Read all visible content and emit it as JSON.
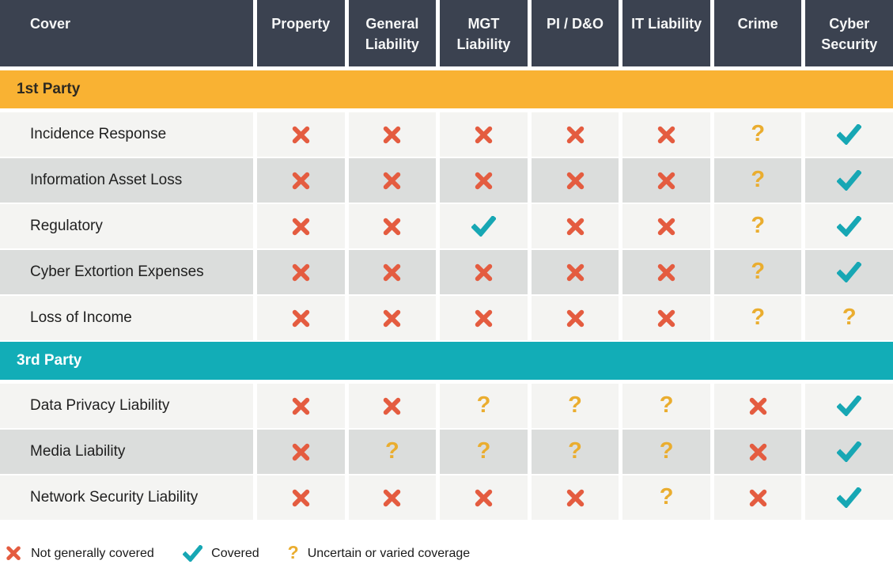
{
  "table": {
    "header": {
      "cover_label": "Cover",
      "columns": [
        "Property",
        "General Liability",
        "MGT Liability",
        "PI / D&O",
        "IT Liability",
        "Crime",
        "Cyber Security"
      ]
    },
    "sections": [
      {
        "name": "1st Party",
        "style": "amber",
        "rows": [
          {
            "label": "Incidence Response",
            "values": [
              "x",
              "x",
              "x",
              "x",
              "x",
              "q",
              "check"
            ]
          },
          {
            "label": "Information Asset Loss",
            "values": [
              "x",
              "x",
              "x",
              "x",
              "x",
              "q",
              "check"
            ]
          },
          {
            "label": "Regulatory",
            "values": [
              "x",
              "x",
              "check",
              "x",
              "x",
              "q",
              "check"
            ]
          },
          {
            "label": "Cyber Extortion Expenses",
            "values": [
              "x",
              "x",
              "x",
              "x",
              "x",
              "q",
              "check"
            ]
          },
          {
            "label": "Loss of Income",
            "values": [
              "x",
              "x",
              "x",
              "x",
              "x",
              "q",
              "q"
            ]
          }
        ]
      },
      {
        "name": "3rd Party",
        "style": "teal",
        "rows": [
          {
            "label": "Data Privacy Liability",
            "values": [
              "x",
              "x",
              "q",
              "q",
              "q",
              "x",
              "check"
            ]
          },
          {
            "label": "Media Liability",
            "values": [
              "x",
              "q",
              "q",
              "q",
              "q",
              "x",
              "check"
            ]
          },
          {
            "label": "Network Security Liability",
            "values": [
              "x",
              "x",
              "x",
              "x",
              "q",
              "x",
              "check"
            ]
          }
        ]
      }
    ]
  },
  "legend": [
    {
      "icon": "x",
      "label": "Not generally covered"
    },
    {
      "icon": "check",
      "label": "Covered"
    },
    {
      "icon": "q",
      "label": "Uncertain or varied coverage"
    }
  ],
  "icons": {
    "x": "cross-icon",
    "check": "check-icon",
    "q": "question-icon"
  },
  "colors": {
    "header_bg": "#3B4250",
    "header_text": "#F6F7F7",
    "first_party_banner": "#F9B233",
    "third_party_banner": "#12ADB7",
    "row_light": "#F4F4F2",
    "row_dark": "#DBDDDC",
    "not_covered": "#E45C40",
    "covered": "#17A7B4",
    "uncertain": "#EAAD2F"
  },
  "chart_data": {
    "type": "table",
    "title": "",
    "row_header": "Cover",
    "columns": [
      "Property",
      "General Liability",
      "MGT Liability",
      "PI / D&O",
      "IT Liability",
      "Crime",
      "Cyber Security"
    ],
    "sections": [
      {
        "name": "1st Party",
        "rows": [
          {
            "cover": "Incidence Response",
            "coverage": [
              "not-covered",
              "not-covered",
              "not-covered",
              "not-covered",
              "not-covered",
              "uncertain",
              "covered"
            ]
          },
          {
            "cover": "Information Asset Loss",
            "coverage": [
              "not-covered",
              "not-covered",
              "not-covered",
              "not-covered",
              "not-covered",
              "uncertain",
              "covered"
            ]
          },
          {
            "cover": "Regulatory",
            "coverage": [
              "not-covered",
              "not-covered",
              "covered",
              "not-covered",
              "not-covered",
              "uncertain",
              "covered"
            ]
          },
          {
            "cover": "Cyber Extortion Expenses",
            "coverage": [
              "not-covered",
              "not-covered",
              "not-covered",
              "not-covered",
              "not-covered",
              "uncertain",
              "covered"
            ]
          },
          {
            "cover": "Loss of Income",
            "coverage": [
              "not-covered",
              "not-covered",
              "not-covered",
              "not-covered",
              "not-covered",
              "uncertain",
              "uncertain"
            ]
          }
        ]
      },
      {
        "name": "3rd Party",
        "rows": [
          {
            "cover": "Data Privacy Liability",
            "coverage": [
              "not-covered",
              "not-covered",
              "uncertain",
              "uncertain",
              "uncertain",
              "not-covered",
              "covered"
            ]
          },
          {
            "cover": "Media Liability",
            "coverage": [
              "not-covered",
              "uncertain",
              "uncertain",
              "uncertain",
              "uncertain",
              "not-covered",
              "covered"
            ]
          },
          {
            "cover": "Network Security Liability",
            "coverage": [
              "not-covered",
              "not-covered",
              "not-covered",
              "not-covered",
              "uncertain",
              "not-covered",
              "covered"
            ]
          }
        ]
      }
    ],
    "legend": {
      "not-covered": "Not generally covered",
      "covered": "Covered",
      "uncertain": "Uncertain or varied coverage"
    }
  }
}
